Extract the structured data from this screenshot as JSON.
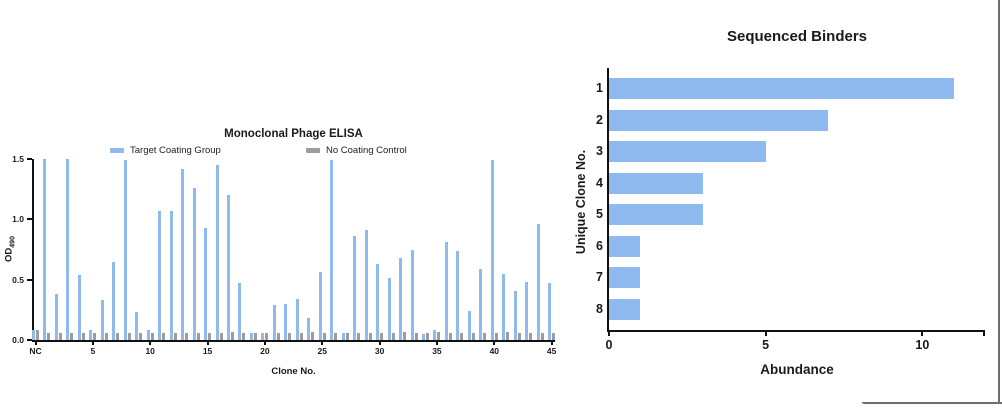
{
  "colors": {
    "target_blue": "#8FBAF0",
    "control_gray": "#9C9C9C",
    "axis_black": "#111111",
    "frame_gray": "#6E6E6E",
    "background": "#FFFFFF"
  },
  "chart_data": [
    {
      "type": "bar",
      "title": "Monoclonal Phage ELISA",
      "xlabel": "Clone No.",
      "ylabel": "OD490",
      "ylabel_base": "OD",
      "ylabel_sub": "490",
      "ylim": [
        0,
        1.5
      ],
      "y_ticks": [
        "0.0",
        "0.5",
        "1.0",
        "1.5"
      ],
      "x_labeled_ticks": [
        {
          "index": 0,
          "label": "NC"
        },
        {
          "index": 5,
          "label": "5"
        },
        {
          "index": 10,
          "label": "10"
        },
        {
          "index": 15,
          "label": "15"
        },
        {
          "index": 20,
          "label": "20"
        },
        {
          "index": 25,
          "label": "25"
        },
        {
          "index": 30,
          "label": "30"
        },
        {
          "index": 35,
          "label": "35"
        },
        {
          "index": 40,
          "label": "40"
        },
        {
          "index": 45,
          "label": "45"
        }
      ],
      "categories": [
        "NC",
        "1",
        "2",
        "3",
        "4",
        "5",
        "6",
        "7",
        "8",
        "9",
        "10",
        "11",
        "12",
        "13",
        "14",
        "15",
        "16",
        "17",
        "18",
        "19",
        "20",
        "21",
        "22",
        "23",
        "24",
        "25",
        "26",
        "27",
        "28",
        "29",
        "30",
        "31",
        "32",
        "33",
        "34",
        "35",
        "36",
        "37",
        "38",
        "39",
        "40",
        "41",
        "42",
        "43",
        "44",
        "45"
      ],
      "legend_position": "top",
      "grid": false,
      "series": [
        {
          "name": "Target Coating Group",
          "color": "#8FBAF0",
          "values": [
            0.08,
            1.5,
            0.38,
            1.5,
            0.54,
            0.08,
            0.33,
            0.65,
            1.49,
            0.23,
            0.08,
            1.07,
            1.07,
            1.42,
            1.26,
            0.93,
            1.45,
            1.2,
            0.47,
            0.06,
            0.06,
            0.29,
            0.3,
            0.34,
            0.18,
            0.56,
            1.49,
            0.06,
            0.86,
            0.91,
            0.63,
            0.51,
            0.68,
            0.75,
            0.05,
            0.08,
            0.81,
            0.74,
            0.24,
            0.59,
            1.49,
            0.55,
            0.41,
            0.48,
            0.96,
            0.47
          ]
        },
        {
          "name": "No Coating Control",
          "color": "#9C9C9C",
          "values": [
            0.08,
            0.06,
            0.06,
            0.06,
            0.06,
            0.06,
            0.06,
            0.06,
            0.06,
            0.06,
            0.06,
            0.06,
            0.06,
            0.06,
            0.06,
            0.06,
            0.06,
            0.07,
            0.06,
            0.06,
            0.06,
            0.06,
            0.06,
            0.06,
            0.07,
            0.06,
            0.06,
            0.06,
            0.06,
            0.06,
            0.06,
            0.06,
            0.07,
            0.06,
            0.06,
            0.07,
            0.06,
            0.06,
            0.06,
            0.06,
            0.06,
            0.07,
            0.06,
            0.06,
            0.06,
            0.06
          ]
        }
      ]
    },
    {
      "type": "bar-horizontal",
      "title": "Sequenced Binders",
      "xlabel": "Abundance",
      "ylabel": "Unique Clone No.",
      "categories": [
        "1",
        "2",
        "3",
        "4",
        "5",
        "6",
        "7",
        "8"
      ],
      "values": [
        11,
        7,
        5,
        3,
        3,
        1,
        1,
        1
      ],
      "xlim": [
        0,
        12
      ],
      "x_ticks": [
        "0",
        "5",
        "10"
      ],
      "x_tick_values": [
        0,
        5,
        10
      ],
      "bar_color": "#8FBAF0",
      "grid": false
    }
  ]
}
